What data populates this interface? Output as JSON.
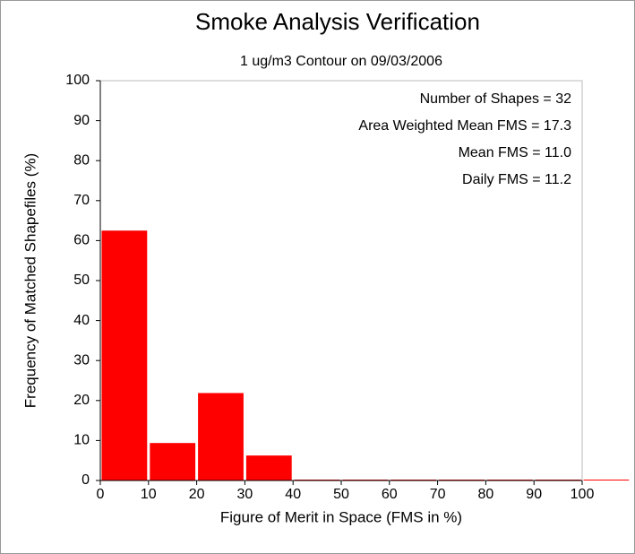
{
  "chart_data": {
    "type": "histogram",
    "title": "Smoke Analysis Verification",
    "subtitle": "1 ug/m3 Contour on 09/03/2006",
    "x_label": "Figure of Merit in Space (FMS in %)",
    "y_label": "Frequency of Matched Shapefiles (%)",
    "annotations": [
      "Number of Shapes = 32",
      "Area Weighted Mean FMS = 17.3",
      "Mean FMS = 11.0",
      "Daily FMS = 11.2"
    ],
    "bins": [
      0,
      10,
      20,
      30,
      40,
      50,
      60,
      70,
      80,
      90,
      100,
      110
    ],
    "values": [
      62.5,
      9.375,
      21.875,
      6.25,
      0,
      0,
      0,
      0,
      0,
      0,
      0
    ],
    "color": "#ff0000",
    "xlim": [
      0,
      100
    ],
    "xticks": [
      0,
      10,
      20,
      30,
      40,
      50,
      60,
      70,
      80,
      90,
      100
    ],
    "ylim": [
      0,
      100
    ],
    "yticks": [
      0,
      10,
      20,
      30,
      40,
      50,
      60,
      70,
      80,
      90,
      100
    ]
  }
}
